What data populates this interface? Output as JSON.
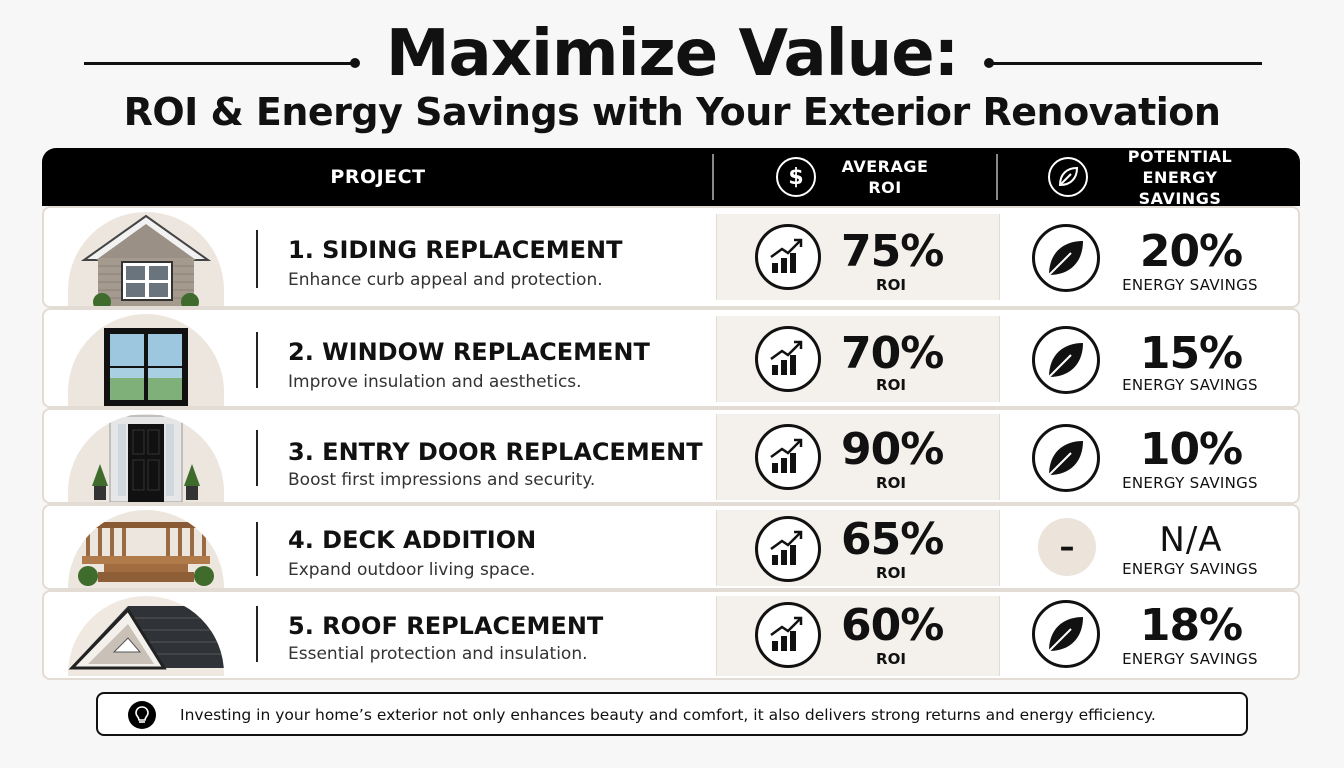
{
  "title": "Maximize Value:",
  "subtitle": "ROI & Energy Savings with Your Exterior Renovation",
  "table": {
    "headers": {
      "project": "PROJECT",
      "roi": "AVERAGE ROI",
      "roi_icon": "dollar-icon",
      "energy": "POTENTIAL ENERGY SAVINGS",
      "energy_icon": "leaf-icon"
    },
    "rows": [
      {
        "title": "1. SIDING REPLACEMENT",
        "desc": "Enhance curb appeal and protection.",
        "roi": "75%",
        "roi_label": "ROI",
        "energy": "20%",
        "energy_label": "ENERGY SAVINGS",
        "image": "house-siding-illustration"
      },
      {
        "title": "2. WINDOW REPLACEMENT",
        "desc": "Improve insulation and aesthetics.",
        "roi": "70%",
        "roi_label": "ROI",
        "energy": "15%",
        "energy_label": "ENERGY SAVINGS",
        "image": "window-illustration"
      },
      {
        "title": "3. ENTRY DOOR REPLACEMENT",
        "desc": "Boost first impressions and security.",
        "roi": "90%",
        "roi_label": "ROI",
        "energy": "10%",
        "energy_label": "ENERGY SAVINGS",
        "image": "entry-door-illustration"
      },
      {
        "title": "4. DECK ADDITION",
        "desc": "Expand outdoor living space.",
        "roi": "65%",
        "roi_label": "ROI",
        "energy": "N/A",
        "energy_label": "ENERGY SAVINGS",
        "energy_symbol": "–",
        "image": "deck-illustration"
      },
      {
        "title": "5. ROOF REPLACEMENT",
        "desc": "Essential protection and insulation.",
        "roi": "60%",
        "roi_label": "ROI",
        "energy": "18%",
        "energy_label": "ENERGY SAVINGS",
        "image": "roof-illustration"
      }
    ]
  },
  "footer": {
    "icon": "lightbulb-icon",
    "text": "Investing in your home’s exterior not only enhances beauty and comfort, it also delivers strong returns and energy efficiency."
  },
  "colors": {
    "header_bg": "#000000",
    "row_border": "#e3dcd4",
    "roi_cell_bg": "#f4f0eb",
    "thumb_bg": "#ece6de"
  }
}
